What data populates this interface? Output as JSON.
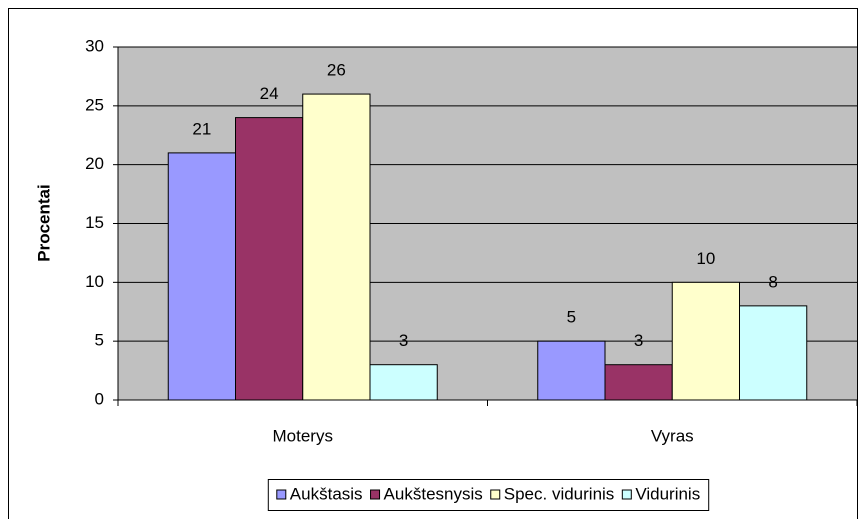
{
  "chart_data": {
    "type": "bar",
    "y_label": "Procentai",
    "categories": [
      "Moterys",
      "Vyras"
    ],
    "series": [
      {
        "name": "Aukštasis",
        "color": "#9999ff",
        "values": [
          21,
          5
        ]
      },
      {
        "name": "Aukštesnysis",
        "color": "#993366",
        "values": [
          24,
          3
        ]
      },
      {
        "name": "Spec. vidurinis",
        "color": "#ffffcc",
        "values": [
          26,
          10
        ]
      },
      {
        "name": "Vidurinis",
        "color": "#ccffff",
        "values": [
          3,
          8
        ]
      }
    ],
    "ylim": [
      0,
      30
    ],
    "yticks": [
      0,
      5,
      10,
      15,
      20,
      25,
      30
    ],
    "grid": true,
    "legend": "bottom",
    "show_values": true
  }
}
